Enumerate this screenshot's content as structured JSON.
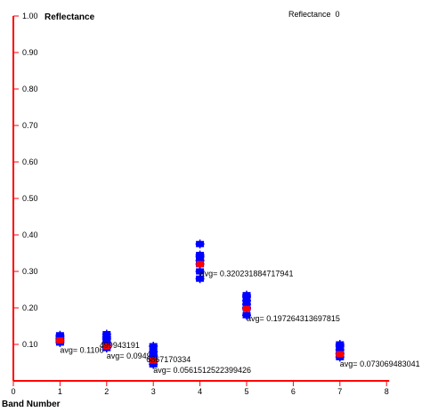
{
  "status": {
    "label": "Reflectance",
    "value": "0"
  },
  "colors": {
    "axis": "#ff0000",
    "samples": "#0000ff",
    "mean": "#ff0000",
    "text": "#000000"
  },
  "chart_data": {
    "type": "scatter",
    "xlabel": "Band Number",
    "ylabel": "Reflectance",
    "xlim": [
      0,
      8
    ],
    "ylim": [
      0,
      1.0
    ],
    "xticks": [
      "0",
      "1",
      "2",
      "3",
      "4",
      "5",
      "6",
      "7",
      "8"
    ],
    "yticks": [
      {
        "v": 0.1,
        "label": "0.10"
      },
      {
        "v": 0.2,
        "label": "0.20"
      },
      {
        "v": 0.3,
        "label": "0.30"
      },
      {
        "v": 0.4,
        "label": "0.40"
      },
      {
        "v": 0.5,
        "label": "0.50"
      },
      {
        "v": 0.6,
        "label": "0.60"
      },
      {
        "v": 0.7,
        "label": "0.70"
      },
      {
        "v": 0.8,
        "label": "0.80"
      },
      {
        "v": 0.9,
        "label": "0.90"
      },
      {
        "v": 1.0,
        "label": "1.00"
      }
    ],
    "bands": [
      {
        "x": 1,
        "avg": 0.1106,
        "avg_label": "avg= 0.1106",
        "samples": [
          0.105,
          0.11,
          0.115,
          0.12,
          0.125
        ]
      },
      {
        "x": 2,
        "avg": 0.0949,
        "avg_label": "avg= 0.0949",
        "samples": [
          0.09,
          0.1,
          0.105,
          0.115,
          0.12,
          0.128
        ]
      },
      {
        "x": 3,
        "avg": 0.0561,
        "avg_label": "avg= 0.0561512522399426",
        "samples": [
          0.045,
          0.055,
          0.06,
          0.07,
          0.08,
          0.095
        ]
      },
      {
        "x": 4,
        "avg": 0.3202,
        "avg_label": "avg= 0.320231884717941",
        "samples": [
          0.28,
          0.3,
          0.32,
          0.33,
          0.34,
          0.345,
          0.375
        ]
      },
      {
        "x": 5,
        "avg": 0.1973,
        "avg_label": "avg= 0.197264313697815",
        "samples": [
          0.18,
          0.2,
          0.21,
          0.22,
          0.23,
          0.235
        ]
      },
      {
        "x": 7,
        "avg": 0.0731,
        "avg_label": "avg= 0.073069483041",
        "samples": [
          0.065,
          0.075,
          0.085,
          0.095,
          0.1
        ]
      }
    ],
    "overlap_labels": [
      {
        "x": 2,
        "avg": 0.0949,
        "text": "499943191"
      },
      {
        "x": 3,
        "avg": 0.0561,
        "text": "6867170334"
      }
    ]
  }
}
